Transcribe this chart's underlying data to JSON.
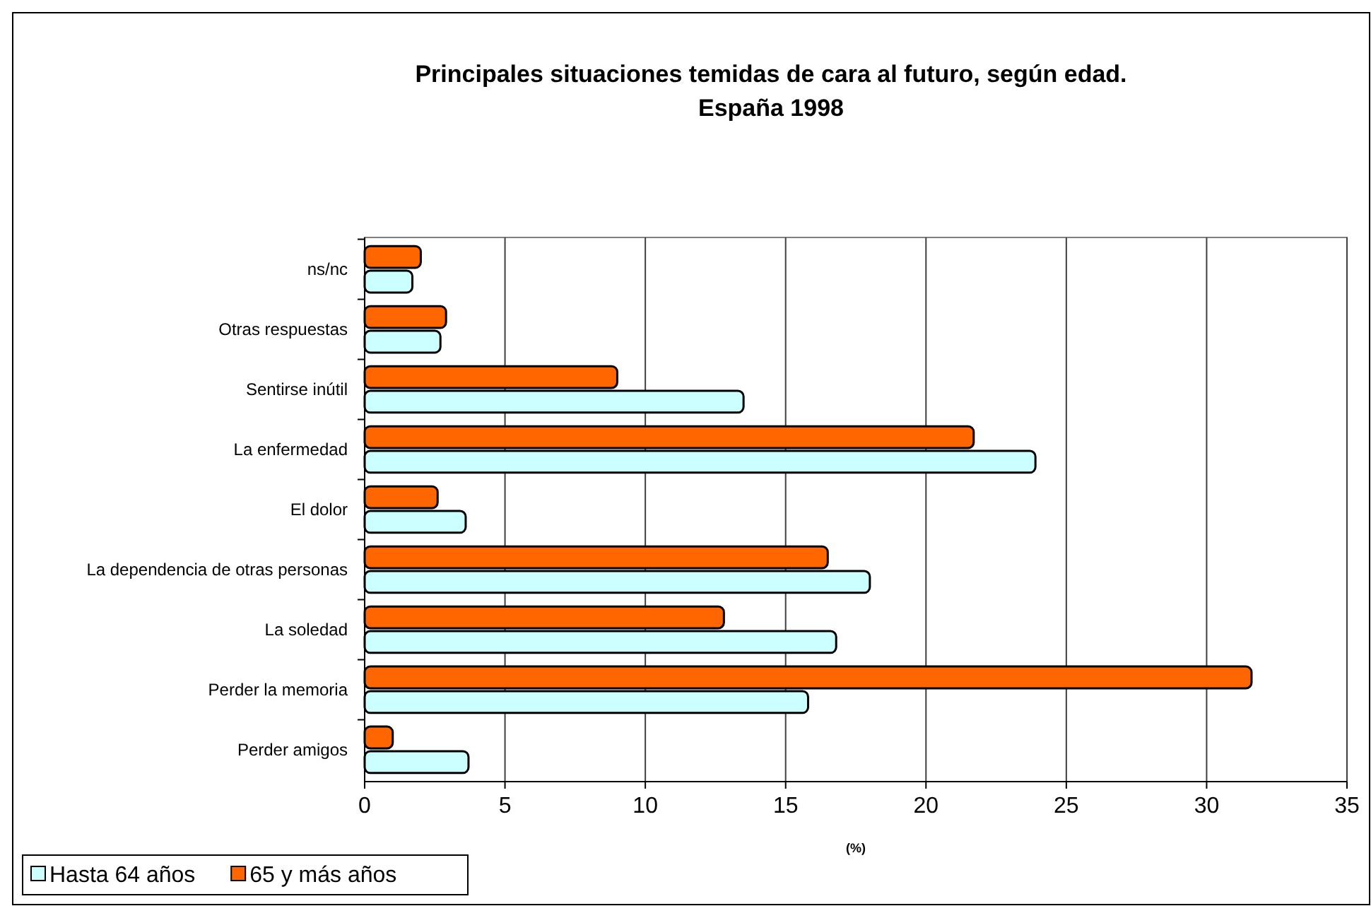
{
  "chart_data": {
    "type": "bar",
    "orientation": "horizontal",
    "title": "Principales situaciones temidas de cara al futuro, según edad. España 1998",
    "xlabel": "(%)",
    "categories": [
      "ns/nc",
      "Otras respuestas",
      "Sentirse inútil",
      "La enfermedad",
      "El dolor",
      "La dependencia de otras personas",
      "La soledad",
      "Perder la memoria",
      "Perder amigos"
    ],
    "series": [
      {
        "name": "Hasta 64 años",
        "color": "#ccffff",
        "values": [
          1.7,
          2.7,
          13.5,
          23.9,
          3.6,
          18.0,
          16.8,
          15.8,
          3.7
        ]
      },
      {
        "name": "65 y más años",
        "color": "#ff6600",
        "values": [
          2.0,
          2.9,
          9.0,
          21.7,
          2.6,
          16.5,
          12.8,
          31.6,
          1.0
        ]
      }
    ],
    "xlim": [
      0,
      35
    ],
    "xticks": [
      0,
      5,
      10,
      15,
      20,
      25,
      30,
      35
    ],
    "grid": "x",
    "legend": "bottom left"
  }
}
